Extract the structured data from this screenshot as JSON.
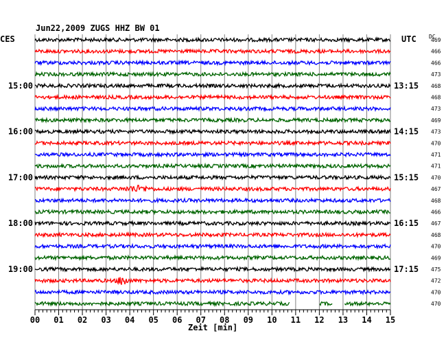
{
  "header": {
    "title": "Jun22,2009   ZUGS HHZ BW 01",
    "left_label": "CES",
    "right_label": "UTC",
    "dc_label": "DC"
  },
  "chart_data": {
    "type": "line",
    "title": "Jun22,2009   ZUGS HHZ BW 01",
    "xlabel": "Zeit [min]",
    "xlim": [
      0,
      15
    ],
    "x_ticks": [
      "00",
      "01",
      "02",
      "03",
      "04",
      "05",
      "06",
      "07",
      "08",
      "09",
      "10",
      "11",
      "12",
      "13",
      "14",
      "15"
    ],
    "trace_minutes": 15,
    "trace_colors": [
      "#000000",
      "#ff0000",
      "#0000ff",
      "#006400"
    ],
    "left_time_labels": [
      {
        "trace": 4,
        "label": "15:00"
      },
      {
        "trace": 8,
        "label": "16:00"
      },
      {
        "trace": 12,
        "label": "17:00"
      },
      {
        "trace": 16,
        "label": "18:00"
      },
      {
        "trace": 20,
        "label": "19:00"
      }
    ],
    "right_time_labels": [
      {
        "trace": 4,
        "label": "13:15"
      },
      {
        "trace": 8,
        "label": "14:15"
      },
      {
        "trace": 12,
        "label": "15:15"
      },
      {
        "trace": 16,
        "label": "16:15"
      },
      {
        "trace": 20,
        "label": "17:15"
      }
    ],
    "dc_values": [
      469,
      466,
      466,
      473,
      468,
      468,
      473,
      469,
      473,
      470,
      471,
      471,
      470,
      467,
      468,
      466,
      467,
      468,
      470,
      469,
      475,
      472,
      470,
      470
    ],
    "events": [
      {
        "trace": 13,
        "minute": 4.3,
        "amplitude": "small"
      },
      {
        "trace": 21,
        "minute": 3.7,
        "amplitude": "large"
      }
    ],
    "gaps": [
      {
        "trace": 23,
        "from": 10.75,
        "to": 12.0
      },
      {
        "trace": 23,
        "from": 12.55,
        "to": 13.05
      }
    ]
  }
}
